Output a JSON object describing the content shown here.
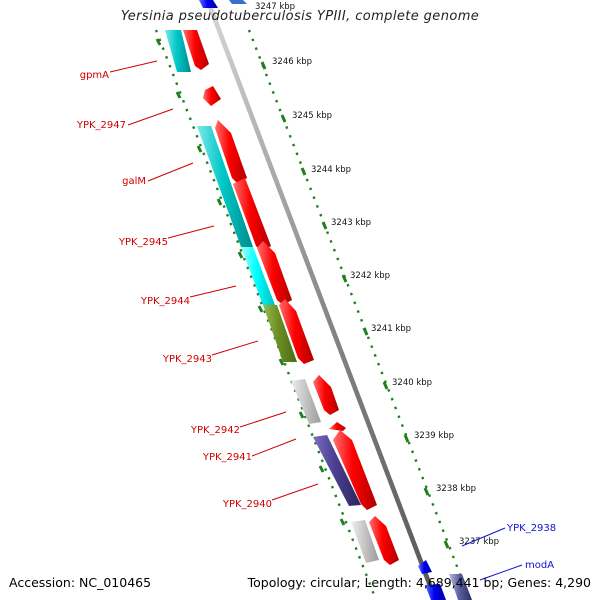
{
  "title": "Yersinia pseudotuberculosis YPIII, complete genome",
  "accession": "Accession: NC_010465",
  "topology": "Topology: circular; Length: 4,689,441 bp; Genes: 4,290",
  "colors": {
    "forward_gene": "#ff0000",
    "cds_cyan": "#00c8c8",
    "cds_bright_cyan": "#00ffff",
    "cds_olive": "#6b8e23",
    "cds_grey": "#c8c8c8",
    "cds_purple": "#4b3f8f",
    "backbone": "#7a7a7a",
    "tick": "#208020",
    "label_red": "#d00000",
    "label_blue": "#1010d0"
  },
  "scale_labels": [
    "3247 kbp",
    "3246 kbp",
    "3245 kbp",
    "3244 kbp",
    "3243 kbp",
    "3242 kbp",
    "3241 kbp",
    "3240 kbp",
    "3239 kbp",
    "3238 kbp",
    "3237 kbp"
  ],
  "gene_labels_left": [
    "gpmA",
    "YPK_2947",
    "galM",
    "YPK_2945",
    "YPK_2944",
    "YPK_2943",
    "YPK_2942",
    "YPK_2941",
    "YPK_2940"
  ],
  "gene_labels_right": [
    "YPK_2938",
    "modA"
  ]
}
